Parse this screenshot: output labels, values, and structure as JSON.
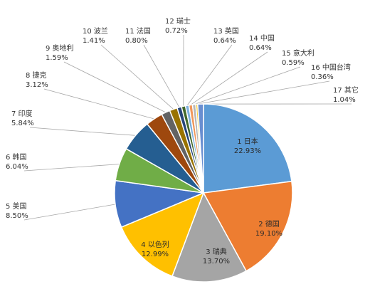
{
  "chart_data": {
    "type": "pie",
    "title": "",
    "legend": "none",
    "slices": [
      {
        "label": "1 日本",
        "value_label": "22.93%",
        "value": 22.93,
        "color": "#5b9bd5"
      },
      {
        "label": "2 德国",
        "value_label": "19.10%",
        "value": 19.1,
        "color": "#ed7d31"
      },
      {
        "label": "3 瑞典",
        "value_label": "13.70%",
        "value": 13.7,
        "color": "#a5a5a5"
      },
      {
        "label": "4 以色列",
        "value_label": "12.99%",
        "value": 12.99,
        "color": "#ffc000"
      },
      {
        "label": "5 美国",
        "value_label": "8.50%",
        "value": 8.5,
        "color": "#4472c4"
      },
      {
        "label": "6 韩国",
        "value_label": "6.04%",
        "value": 6.04,
        "color": "#70ad47"
      },
      {
        "label": "7 印度",
        "value_label": "5.84%",
        "value": 5.84,
        "color": "#255e91"
      },
      {
        "label": "8 捷克",
        "value_label": "3.12%",
        "value": 3.12,
        "color": "#9e480e"
      },
      {
        "label": "9 奥地利",
        "value_label": "1.59%",
        "value": 1.59,
        "color": "#636363"
      },
      {
        "label": "10 波兰",
        "value_label": "1.41%",
        "value": 1.41,
        "color": "#997300"
      },
      {
        "label": "11 法国",
        "value_label": "0.80%",
        "value": 0.8,
        "color": "#264478"
      },
      {
        "label": "12 瑞士",
        "value_label": "0.72%",
        "value": 0.72,
        "color": "#43682b"
      },
      {
        "label": "13 英国",
        "value_label": "0.64%",
        "value": 0.64,
        "color": "#7cafdd"
      },
      {
        "label": "14 中国",
        "value_label": "0.64%",
        "value": 0.64,
        "color": "#f1975a"
      },
      {
        "label": "15 意大利",
        "value_label": "0.59%",
        "value": 0.59,
        "color": "#b7b7b7"
      },
      {
        "label": "16 中国台湾",
        "value_label": "0.36%",
        "value": 0.36,
        "color": "#ffcd33"
      },
      {
        "label": "17 其它",
        "value_label": "1.04%",
        "value": 1.04,
        "color": "#698ed0"
      }
    ]
  }
}
